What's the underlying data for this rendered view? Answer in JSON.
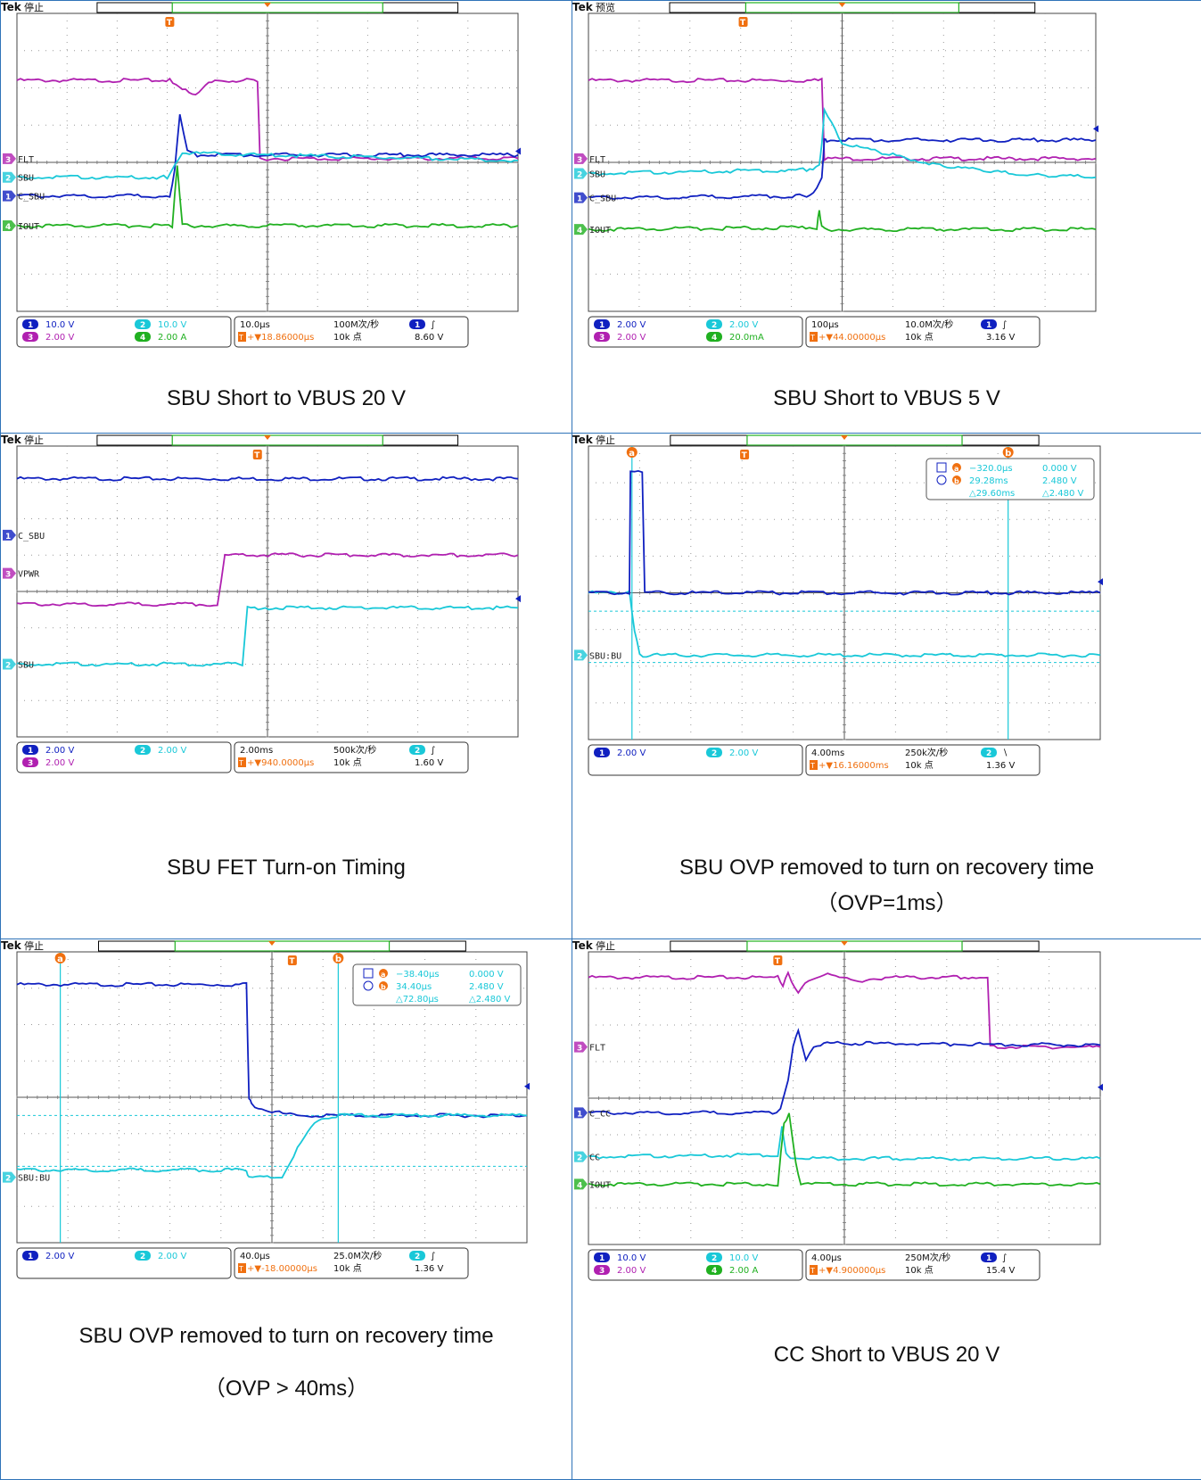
{
  "colors": {
    "border": "#2f73b8",
    "ch1": "#1020c0",
    "ch2": "#19c8d8",
    "ch3": "#b020b0",
    "ch4": "#20b020",
    "orange": "#f07010",
    "grid": "#888888",
    "text": "#111111"
  },
  "panels": [
    {
      "id": "p1",
      "caption": [
        "SBU Short to VBUS 20 V"
      ],
      "scope": {
        "brand": "Tek",
        "status": "停止",
        "trig_marker": "T",
        "time_div": "10.0µs",
        "sample_rate": "100M次/秒",
        "trig_pos": "▼18.86000µs",
        "rec_len": "10k 点",
        "trig_ch": "1",
        "trig_slope": "∫",
        "trig_level": "8.60 V",
        "ch_scales": [
          {
            "ch": "1",
            "val": "10.0 V"
          },
          {
            "ch": "2",
            "val": "10.0 V"
          },
          {
            "ch": "3",
            "val": "2.00 V"
          },
          {
            "ch": "4",
            "val": "2.00 A"
          }
        ],
        "labels": [
          {
            "ch": "3",
            "text": "FLT"
          },
          {
            "ch": "2",
            "text": "SBU"
          },
          {
            "ch": "1",
            "text": "C_SBU"
          },
          {
            "ch": "4",
            "text": "IOUT"
          }
        ]
      },
      "chart_data": {
        "type": "line",
        "x_unit": "div",
        "y_unit": "div",
        "xlim": [
          0,
          10
        ],
        "ylim": [
          0,
          8
        ],
        "series": [
          {
            "ch": "3",
            "x": [
              0,
              3.05,
              3.3,
              3.5,
              3.7,
              3.95,
              4.8,
              4.85,
              10
            ],
            "y": [
              6.2,
              6.2,
              6.0,
              5.8,
              6.0,
              6.2,
              6.2,
              4.1,
              4.1
            ]
          },
          {
            "ch": "1",
            "x": [
              0,
              3.05,
              3.15,
              3.25,
              3.4,
              3.6,
              10
            ],
            "y": [
              3.1,
              3.1,
              3.8,
              5.3,
              4.3,
              4.2,
              4.2
            ]
          },
          {
            "ch": "2",
            "x": [
              0,
              3.0,
              3.15,
              3.3,
              10
            ],
            "y": [
              3.6,
              3.6,
              3.9,
              4.25,
              4.05
            ]
          },
          {
            "ch": "4",
            "x": [
              0,
              3.1,
              3.2,
              3.3,
              3.4,
              10
            ],
            "y": [
              2.3,
              2.3,
              3.9,
              2.35,
              2.3,
              2.3
            ]
          }
        ]
      },
      "cursor": null
    },
    {
      "id": "p2",
      "caption": [
        "SBU Short to VBUS 5 V"
      ],
      "scope": {
        "brand": "Tek",
        "status": "预览",
        "trig_marker": "T",
        "time_div": "100µs",
        "sample_rate": "10.0M次/秒",
        "trig_pos": "▼44.00000µs",
        "rec_len": "10k 点",
        "trig_ch": "1",
        "trig_slope": "∫",
        "trig_level": "3.16 V",
        "ch_scales": [
          {
            "ch": "1",
            "val": "2.00 V"
          },
          {
            "ch": "2",
            "val": "2.00 V"
          },
          {
            "ch": "3",
            "val": "2.00 V"
          },
          {
            "ch": "4",
            "val": "20.0mA"
          }
        ],
        "labels": [
          {
            "ch": "3",
            "text": "FLT"
          },
          {
            "ch": "2",
            "text": "SBU"
          },
          {
            "ch": "1",
            "text": "C_SBU"
          },
          {
            "ch": "4",
            "text": "IOUT"
          }
        ]
      },
      "chart_data": {
        "type": "line",
        "x_unit": "div",
        "y_unit": "div",
        "xlim": [
          0,
          10
        ],
        "ylim": [
          0,
          8
        ],
        "series": [
          {
            "ch": "3",
            "x": [
              0,
              4.6,
              4.65,
              10
            ],
            "y": [
              6.2,
              6.2,
              4.1,
              4.1
            ]
          },
          {
            "ch": "1",
            "x": [
              0,
              4.3,
              4.5,
              4.6,
              4.65,
              4.7,
              10
            ],
            "y": [
              3.05,
              3.1,
              3.3,
              3.6,
              4.6,
              4.6,
              4.6
            ]
          },
          {
            "ch": "2",
            "x": [
              0,
              4.3,
              4.55,
              4.6,
              4.65,
              5.0,
              6.0,
              7.0,
              8.0,
              9.0,
              10
            ],
            "y": [
              3.7,
              3.8,
              3.9,
              4.5,
              5.4,
              4.5,
              4.2,
              3.9,
              3.75,
              3.65,
              3.6
            ]
          },
          {
            "ch": "4",
            "x": [
              0,
              4.5,
              4.55,
              4.6,
              4.65,
              10
            ],
            "y": [
              2.2,
              2.25,
              2.7,
              2.3,
              2.2,
              2.2
            ]
          }
        ]
      },
      "cursor": null
    },
    {
      "id": "p3",
      "caption": [
        "SBU FET Turn-on Timing"
      ],
      "scope": {
        "brand": "Tek",
        "status": "停止",
        "trig_marker": "T",
        "time_div": "2.00ms",
        "sample_rate": "500k次/秒",
        "trig_pos": "▼940.0000µs",
        "rec_len": "10k 点",
        "trig_ch": "2",
        "trig_slope": "∫",
        "trig_level": "1.60 V",
        "ch_scales": [
          {
            "ch": "1",
            "val": "2.00 V"
          },
          {
            "ch": "2",
            "val": "2.00 V"
          },
          {
            "ch": "3",
            "val": "2.00 V"
          }
        ],
        "labels": [
          {
            "ch": "1",
            "text": "C_SBU"
          },
          {
            "ch": "3",
            "text": "VPWR"
          },
          {
            "ch": "2",
            "text": "SBU"
          }
        ]
      },
      "chart_data": {
        "type": "line",
        "x_unit": "div",
        "y_unit": "div",
        "xlim": [
          0,
          10
        ],
        "ylim": [
          0,
          8
        ],
        "series": [
          {
            "ch": "1",
            "x": [
              0,
              10
            ],
            "y": [
              7.1,
              7.1
            ]
          },
          {
            "ch": "3",
            "x": [
              0,
              4.0,
              4.15,
              10
            ],
            "y": [
              3.65,
              3.65,
              5.0,
              5.0
            ]
          },
          {
            "ch": "2",
            "x": [
              0,
              4.5,
              4.6,
              10
            ],
            "y": [
              2.0,
              2.0,
              3.55,
              3.55
            ]
          }
        ]
      },
      "cursor": null
    },
    {
      "id": "p4",
      "caption": [
        "SBU OVP removed to turn on recovery time",
        "（OVP=1ms）"
      ],
      "scope": {
        "brand": "Tek",
        "status": "停止",
        "trig_marker": "T",
        "time_div": "4.00ms",
        "sample_rate": "250k次/秒",
        "trig_pos": "▼16.16000ms",
        "rec_len": "10k 点",
        "trig_ch": "2",
        "trig_slope": "∖",
        "trig_level": "1.36 V",
        "ch_scales": [
          {
            "ch": "1",
            "val": "2.00 V"
          },
          {
            "ch": "2",
            "val": "2.00 V"
          }
        ],
        "labels": [
          {
            "ch": "2",
            "text": "SBU:BU"
          }
        ]
      },
      "chart_data": {
        "type": "line",
        "x_unit": "div",
        "y_unit": "div",
        "xlim": [
          0,
          10
        ],
        "ylim": [
          0,
          8
        ],
        "series": [
          {
            "ch": "2",
            "x": [
              0,
              0.8,
              0.9,
              1.0,
              1.2,
              10
            ],
            "y": [
              4.0,
              4.0,
              3.0,
              2.3,
              2.3,
              2.3
            ]
          },
          {
            "ch": "1",
            "x": [
              0,
              0.8,
              0.82,
              1.05,
              1.1,
              10
            ],
            "y": [
              4.0,
              4.0,
              7.3,
              7.3,
              4.0,
              4.0
            ]
          }
        ]
      },
      "cursor": {
        "a_x": "−320.0µs",
        "a_y": "0.000 V",
        "b_x": "29.28ms",
        "b_y": "2.480 V",
        "d_x": "△29.60ms",
        "d_y": "△2.480 V"
      }
    },
    {
      "id": "p5",
      "caption": [
        "SBU OVP removed to turn on recovery time",
        "（OVP > 40ms）"
      ],
      "scope": {
        "brand": "Tek",
        "status": "停止",
        "trig_marker": "T",
        "time_div": "40.0µs",
        "sample_rate": "25.0M次/秒",
        "trig_pos": "▼-18.00000µs",
        "rec_len": "10k 点",
        "trig_ch": "2",
        "trig_slope": "∫",
        "trig_level": "1.36 V",
        "ch_scales": [
          {
            "ch": "1",
            "val": "2.00 V"
          },
          {
            "ch": "2",
            "val": "2.00 V"
          }
        ],
        "labels": [
          {
            "ch": "2",
            "text": "SBU:BU"
          }
        ]
      },
      "chart_data": {
        "type": "line",
        "x_unit": "div",
        "y_unit": "div",
        "xlim": [
          0,
          10
        ],
        "ylim": [
          0,
          8
        ],
        "series": [
          {
            "ch": "1",
            "x": [
              0,
              4.5,
              4.55,
              4.6,
              5.0,
              5.5,
              6.0,
              10
            ],
            "y": [
              7.1,
              7.1,
              4.0,
              3.8,
              3.6,
              3.5,
              3.5,
              3.5
            ]
          },
          {
            "ch": "2",
            "x": [
              0,
              4.5,
              4.55,
              5.2,
              5.5,
              5.9,
              6.4,
              10
            ],
            "y": [
              2.0,
              2.0,
              1.8,
              1.8,
              2.6,
              3.4,
              3.5,
              3.5
            ]
          }
        ]
      },
      "cursor": {
        "a_x": "−38.40µs",
        "a_y": "0.000 V",
        "b_x": "34.40µs",
        "b_y": "2.480 V",
        "d_x": "△72.80µs",
        "d_y": "△2.480 V"
      }
    },
    {
      "id": "p6",
      "caption": [
        "CC Short to VBUS 20 V"
      ],
      "scope": {
        "brand": "Tek",
        "status": "停止",
        "trig_marker": "T",
        "time_div": "4.00µs",
        "sample_rate": "250M次/秒",
        "trig_pos": "▼4.900000µs",
        "rec_len": "10k 点",
        "trig_ch": "1",
        "trig_slope": "∫",
        "trig_level": "15.4 V",
        "ch_scales": [
          {
            "ch": "1",
            "val": "10.0 V"
          },
          {
            "ch": "2",
            "val": "10.0 V"
          },
          {
            "ch": "3",
            "val": "2.00 V"
          },
          {
            "ch": "4",
            "val": "2.00 A"
          }
        ],
        "labels": [
          {
            "ch": "3",
            "text": "FLT"
          },
          {
            "ch": "1",
            "text": "C_CC"
          },
          {
            "ch": "2",
            "text": "CC"
          },
          {
            "ch": "4",
            "text": "IOUT"
          }
        ]
      },
      "chart_data": {
        "type": "line",
        "x_unit": "div",
        "y_unit": "div",
        "xlim": [
          0,
          10
        ],
        "ylim": [
          0,
          8
        ],
        "series": [
          {
            "ch": "3",
            "x": [
              0,
              3.7,
              3.8,
              3.9,
              4.1,
              4.3,
              4.6,
              5.2,
              5.8,
              7.2,
              7.8,
              7.85,
              10
            ],
            "y": [
              7.3,
              7.3,
              7.1,
              7.4,
              6.9,
              7.2,
              7.4,
              7.2,
              7.3,
              7.3,
              7.3,
              5.4,
              5.4
            ]
          },
          {
            "ch": "1",
            "x": [
              0,
              3.6,
              3.75,
              3.9,
              4.0,
              4.1,
              4.25,
              4.4,
              4.6,
              5.0,
              10
            ],
            "y": [
              3.6,
              3.6,
              3.7,
              4.5,
              5.4,
              5.9,
              5.0,
              5.4,
              5.5,
              5.5,
              5.45
            ]
          },
          {
            "ch": "2",
            "x": [
              0,
              3.7,
              3.78,
              3.86,
              3.95,
              4.1,
              10
            ],
            "y": [
              2.4,
              2.45,
              3.2,
              2.5,
              2.35,
              2.35,
              2.35
            ]
          },
          {
            "ch": "4",
            "x": [
              0,
              3.7,
              3.82,
              3.92,
              4.05,
              4.15,
              10
            ],
            "y": [
              1.65,
              1.65,
              3.3,
              3.6,
              2.2,
              1.65,
              1.65
            ]
          }
        ]
      },
      "cursor": null
    }
  ]
}
